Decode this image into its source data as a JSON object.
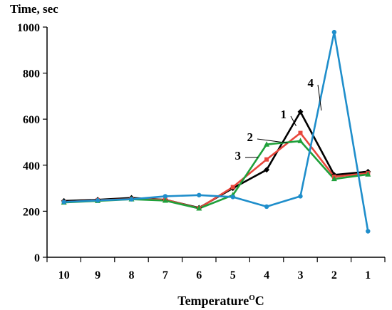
{
  "chart_data": {
    "type": "line",
    "ylabel": "Time, sec",
    "xlabel": "Temperature",
    "xlabel_sup": "O",
    "xlabel_unit": "C",
    "categories": [
      "10",
      "9",
      "8",
      "7",
      "6",
      "5",
      "4",
      "3",
      "2",
      "1"
    ],
    "ylim": [
      0,
      1000
    ],
    "yticks": [
      0,
      200,
      400,
      600,
      800,
      1000
    ],
    "grid": false,
    "legend": "none",
    "series": [
      {
        "name": "1",
        "color": "#000000",
        "marker": "diamond",
        "values": [
          245,
          250,
          258,
          250,
          215,
          300,
          380,
          632,
          358,
          372
        ]
      },
      {
        "name": "2",
        "color": "#e8473c",
        "marker": "square",
        "values": [
          240,
          248,
          253,
          250,
          213,
          305,
          425,
          540,
          350,
          365
        ]
      },
      {
        "name": "3",
        "color": "#1fa03a",
        "marker": "triangle",
        "values": [
          238,
          245,
          252,
          246,
          212,
          270,
          490,
          505,
          340,
          360
        ]
      },
      {
        "name": "4",
        "color": "#1f8ecb",
        "marker": "circle",
        "values": [
          240,
          247,
          252,
          265,
          270,
          262,
          220,
          265,
          978,
          113
        ]
      }
    ]
  }
}
